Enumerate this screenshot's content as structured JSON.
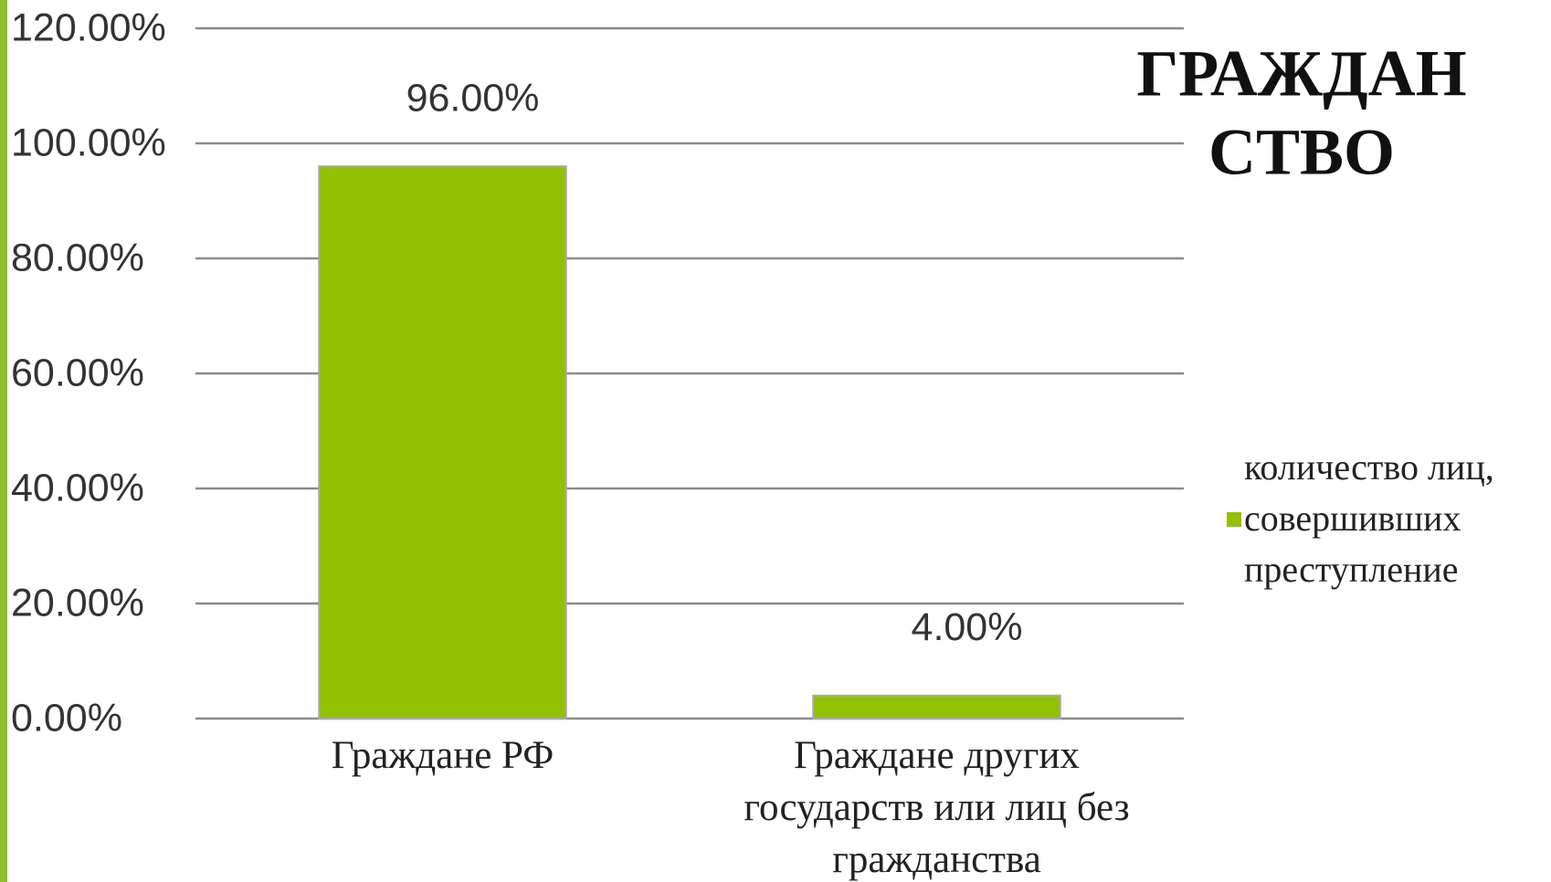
{
  "chart_data": {
    "type": "bar",
    "title": [
      "ГРАЖДАН",
      "СТВО"
    ],
    "categories": [
      "Граждане РФ",
      "Граждане других государств или лиц без гражданства"
    ],
    "series": [
      {
        "name": "количество лиц, совершивших преступление",
        "color": "#92c100",
        "values": [
          96,
          4
        ],
        "value_labels": [
          "96.00%",
          "4.00%"
        ]
      }
    ],
    "ylim": [
      0,
      120
    ],
    "yticks": [
      {
        "value": 0,
        "label": "0.00%"
      },
      {
        "value": 20,
        "label": "20.00%"
      },
      {
        "value": 40,
        "label": "40.00%"
      },
      {
        "value": 60,
        "label": "60.00%"
      },
      {
        "value": 80,
        "label": "80.00%"
      },
      {
        "value": 100,
        "label": "100.00%"
      },
      {
        "value": 120,
        "label": "120.00%"
      }
    ],
    "grid": true,
    "legend": "right"
  }
}
